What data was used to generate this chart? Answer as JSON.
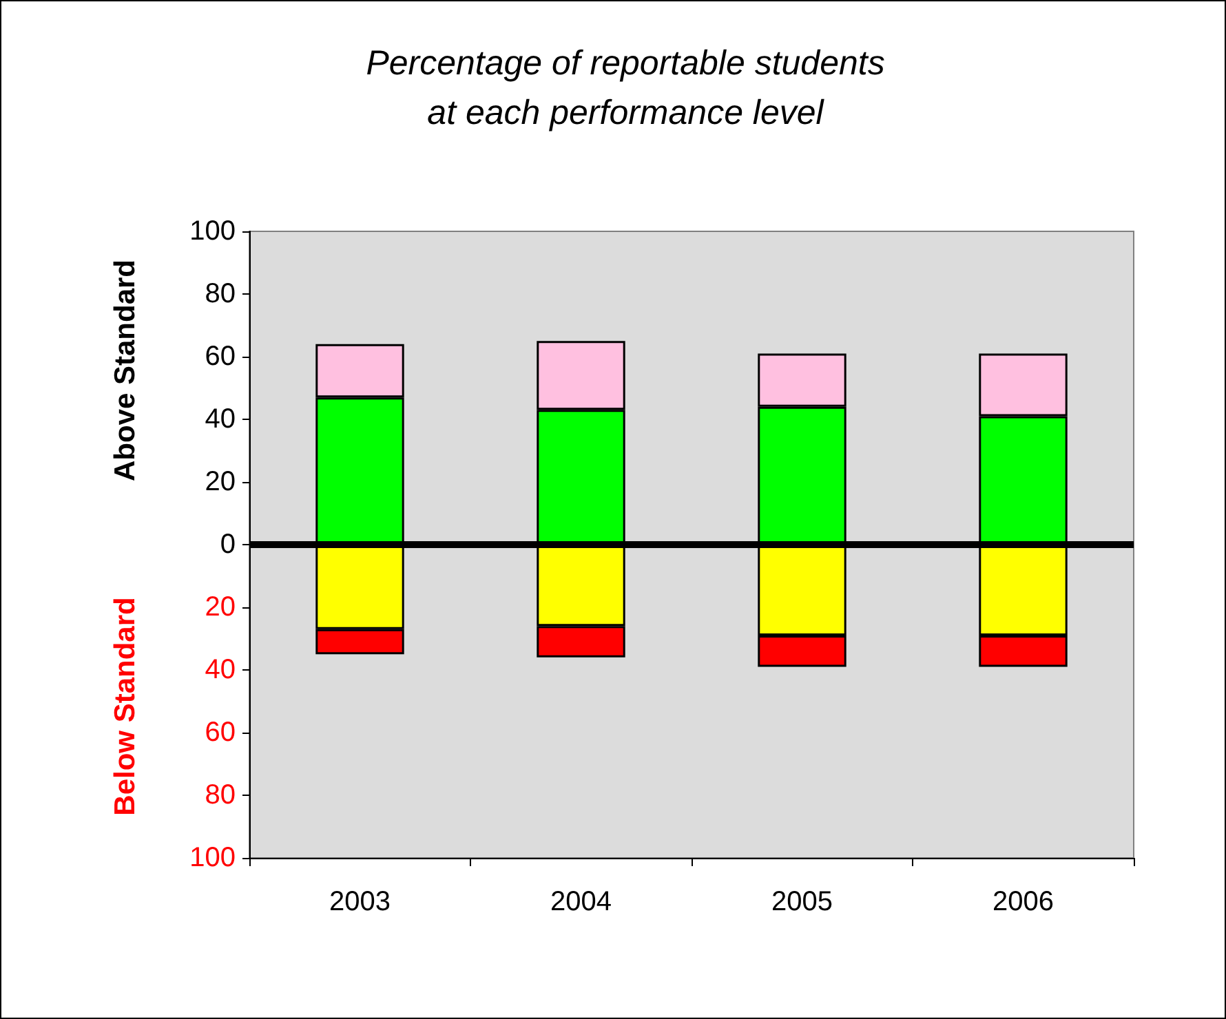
{
  "chart_data": {
    "type": "bar",
    "title": "Percentage of reportable students\nat each performance level",
    "ylabel": "Above Standard",
    "annotations": [
      "Below Standard"
    ],
    "categories": [
      "2003",
      "2004",
      "2005",
      "2006"
    ],
    "stacked": true,
    "series": [
      {
        "color": "#00ff00",
        "values": [
          47,
          43,
          44,
          41
        ]
      },
      {
        "color": "#ffc0e0",
        "values": [
          17,
          22,
          17,
          20
        ]
      },
      {
        "color": "#ffff00",
        "values": [
          -27,
          -26,
          -29,
          -29
        ]
      },
      {
        "color": "#ff0000",
        "values": [
          -8,
          -10,
          -10,
          -10
        ]
      }
    ],
    "ylim": [
      -100,
      100
    ],
    "yticks": [
      {
        "value": -100,
        "label": "100"
      },
      {
        "value": -80,
        "label": "80"
      },
      {
        "value": -60,
        "label": "60"
      },
      {
        "value": -40,
        "label": "40"
      },
      {
        "value": -20,
        "label": "20"
      },
      0,
      20,
      40,
      60,
      80,
      100
    ],
    "ref_lines": [
      {
        "axis": "y",
        "value": 0,
        "color": "#000000"
      }
    ],
    "grid": false
  }
}
